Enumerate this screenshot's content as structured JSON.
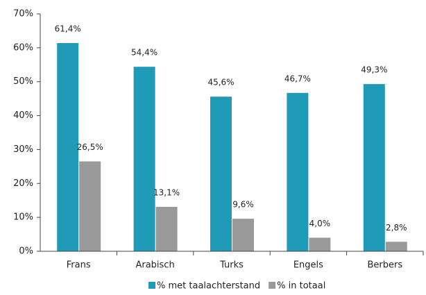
{
  "chart_data": {
    "type": "bar",
    "categories": [
      "Frans",
      "Arabisch",
      "Turks",
      "Engels",
      "Berbers"
    ],
    "series": [
      {
        "name": "% met taalachterstand",
        "color": "#1f9bb8",
        "values": [
          61.4,
          54.4,
          45.6,
          46.7,
          49.3
        ],
        "value_labels": [
          "61,4%",
          "54,4%",
          "45,6%",
          "46,7%",
          "49,3%"
        ]
      },
      {
        "name": "% in totaal",
        "color": "#9a9a9a",
        "values": [
          26.5,
          13.1,
          9.6,
          4.0,
          2.8
        ],
        "value_labels": [
          "26,5%",
          "13,1%",
          "9,6%",
          "4,0%",
          "2,8%"
        ]
      }
    ],
    "ylim": [
      0,
      70
    ],
    "yticks": [
      {
        "value": 0,
        "label": "0%"
      },
      {
        "value": 10,
        "label": "10%"
      },
      {
        "value": 20,
        "label": "20%"
      },
      {
        "value": 30,
        "label": "30%"
      },
      {
        "value": 40,
        "label": "40%"
      },
      {
        "value": 50,
        "label": "50%"
      },
      {
        "value": 60,
        "label": "60%"
      },
      {
        "value": 70,
        "label": "70%"
      }
    ],
    "legend": "bottom"
  }
}
